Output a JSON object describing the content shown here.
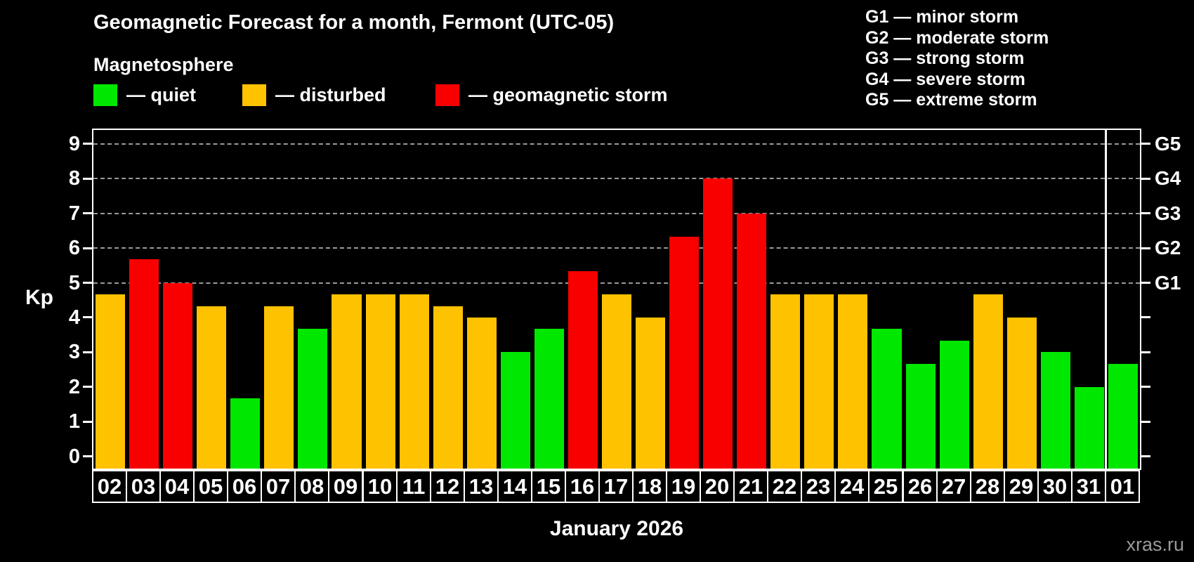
{
  "header": {
    "title": "Geomagnetic Forecast for a month, Fermont (UTC-05)",
    "subtitle": "Magnetosphere"
  },
  "legend": {
    "items": [
      {
        "key": "quiet",
        "label": "— quiet",
        "color": "#00E800"
      },
      {
        "key": "disturbed",
        "label": "— disturbed",
        "color": "#FFC200"
      },
      {
        "key": "storm",
        "label": "— geomagnetic storm",
        "color": "#F80000"
      }
    ]
  },
  "g_scale_legend": [
    "G1 — minor storm",
    "G2 — moderate storm",
    "G3 — strong storm",
    "G4 — severe storm",
    "G5 — extreme storm"
  ],
  "axes": {
    "y_left_label": "Kp",
    "y_ticks": [
      0,
      1,
      2,
      3,
      4,
      5,
      6,
      7,
      8,
      9
    ],
    "g_labels": [
      {
        "kp": 5,
        "label": "G1"
      },
      {
        "kp": 6,
        "label": "G2"
      },
      {
        "kp": 7,
        "label": "G3"
      },
      {
        "kp": 8,
        "label": "G4"
      },
      {
        "kp": 9,
        "label": "G5"
      }
    ],
    "x_label": "January 2026"
  },
  "watermark": "xras.ru",
  "chart_data": {
    "type": "bar",
    "title": "Geomagnetic Forecast for a month, Fermont (UTC-05)",
    "xlabel": "January 2026",
    "ylabel": "Kp",
    "ylim": [
      -0.35,
      9.4
    ],
    "gridlines_at": [
      5,
      6,
      7,
      8,
      9
    ],
    "grid": "dashed horizontal at storm levels only",
    "legend_position": "top",
    "categories": [
      "02",
      "03",
      "04",
      "05",
      "06",
      "07",
      "08",
      "09",
      "10",
      "11",
      "12",
      "13",
      "14",
      "15",
      "16",
      "17",
      "18",
      "19",
      "20",
      "21",
      "22",
      "23",
      "24",
      "25",
      "26",
      "27",
      "28",
      "29",
      "30",
      "31",
      "01"
    ],
    "values": [
      4.67,
      5.67,
      5.0,
      4.33,
      1.67,
      4.33,
      3.67,
      4.67,
      4.67,
      4.67,
      4.33,
      4.0,
      3.0,
      3.67,
      5.33,
      4.67,
      4.0,
      6.33,
      8.0,
      7.0,
      4.67,
      4.67,
      4.67,
      3.67,
      2.67,
      3.33,
      4.67,
      4.0,
      3.0,
      2.0,
      2.67
    ],
    "states": [
      "disturbed",
      "storm",
      "storm",
      "disturbed",
      "quiet",
      "disturbed",
      "quiet",
      "disturbed",
      "disturbed",
      "disturbed",
      "disturbed",
      "disturbed",
      "quiet",
      "quiet",
      "storm",
      "disturbed",
      "disturbed",
      "storm",
      "storm",
      "storm",
      "disturbed",
      "disturbed",
      "disturbed",
      "quiet",
      "quiet",
      "quiet",
      "disturbed",
      "disturbed",
      "quiet",
      "quiet",
      "quiet"
    ],
    "state_colors": {
      "quiet": "#00E800",
      "disturbed": "#FFC200",
      "storm": "#F80000"
    },
    "month_separator_after_category": "31"
  }
}
